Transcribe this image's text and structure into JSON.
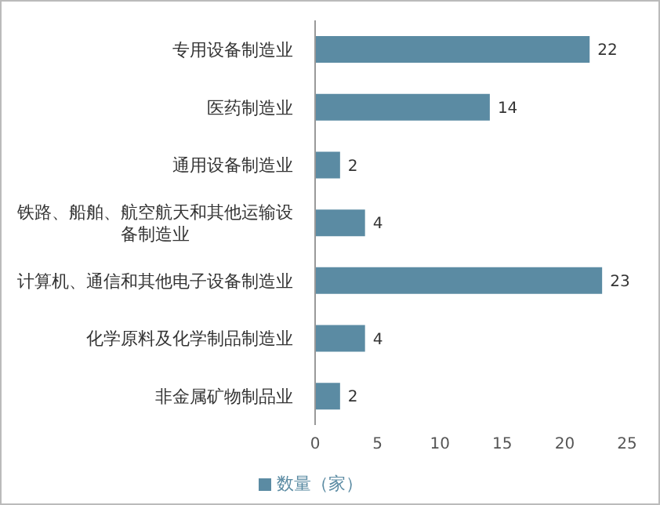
{
  "chart_data": {
    "type": "bar",
    "orientation": "horizontal",
    "categories": [
      "专用设备制造业",
      "医药制造业",
      "通用设备制造业",
      "铁路、船舶、航空航天和其他运输设备制造业",
      "计算机、通信和其他电子设备制造业",
      "化学原料及化学制品制造业",
      "非金属矿物制品业"
    ],
    "series": [
      {
        "name": "数量（家）",
        "color": "#5b8ba3",
        "values": [
          22,
          14,
          2,
          4,
          23,
          4,
          2
        ]
      }
    ],
    "xlim": [
      0,
      25
    ],
    "xticks": [
      0,
      5,
      10,
      15,
      20,
      25
    ],
    "grid": false,
    "legend": "bottom",
    "data_labels": true
  }
}
